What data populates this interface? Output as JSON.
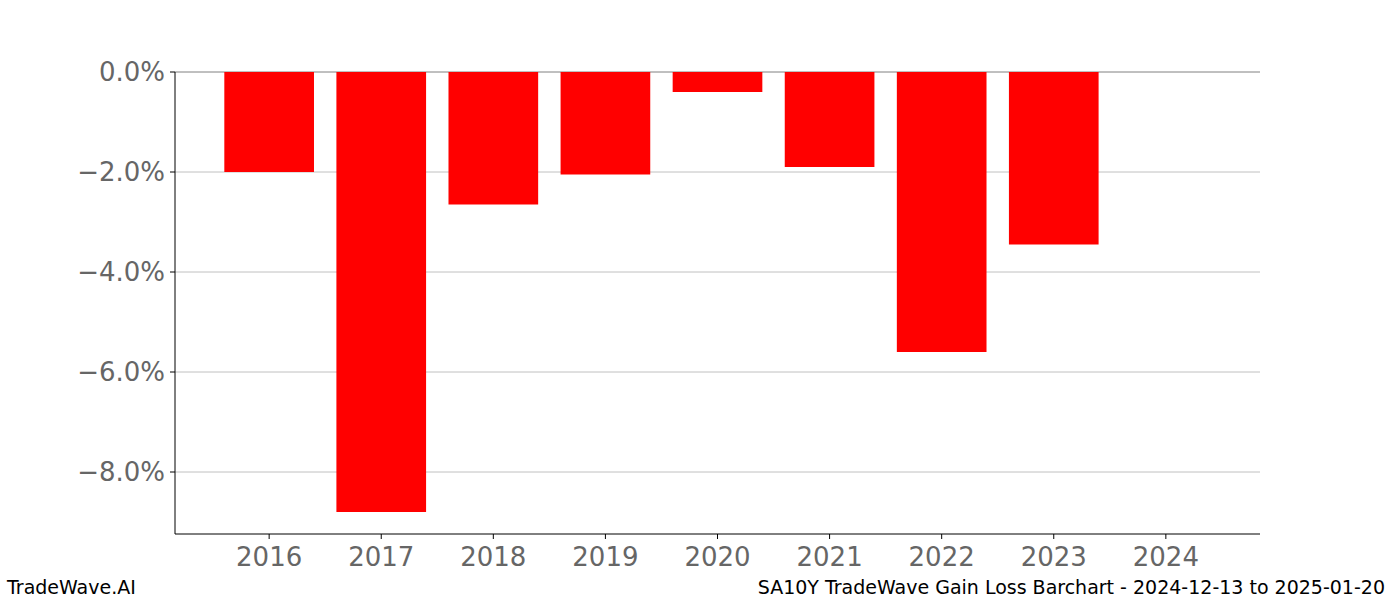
{
  "chart_data": {
    "type": "bar",
    "title": "SA10Y TradeWave Gain Loss Barchart - 2024-12-13 to 2025-01-20",
    "annotations": [
      "TradeWave.AI"
    ],
    "categories": [
      "2016",
      "2017",
      "2018",
      "2019",
      "2020",
      "2021",
      "2022",
      "2023",
      "2024"
    ],
    "values": [
      -2.0,
      -8.8,
      -2.65,
      -2.05,
      -0.4,
      -1.9,
      -5.6,
      -3.45,
      null
    ],
    "color": "#ff0000",
    "ylim": [
      -9.24,
      0
    ],
    "yticks": [
      {
        "value": 0,
        "label": "0.0%"
      },
      {
        "value": -2,
        "label": "−2.0%"
      },
      {
        "value": -4,
        "label": "−4.0%"
      },
      {
        "value": -6,
        "label": "−6.0%"
      },
      {
        "value": -8,
        "label": "−8.0%"
      }
    ],
    "grid": true
  }
}
